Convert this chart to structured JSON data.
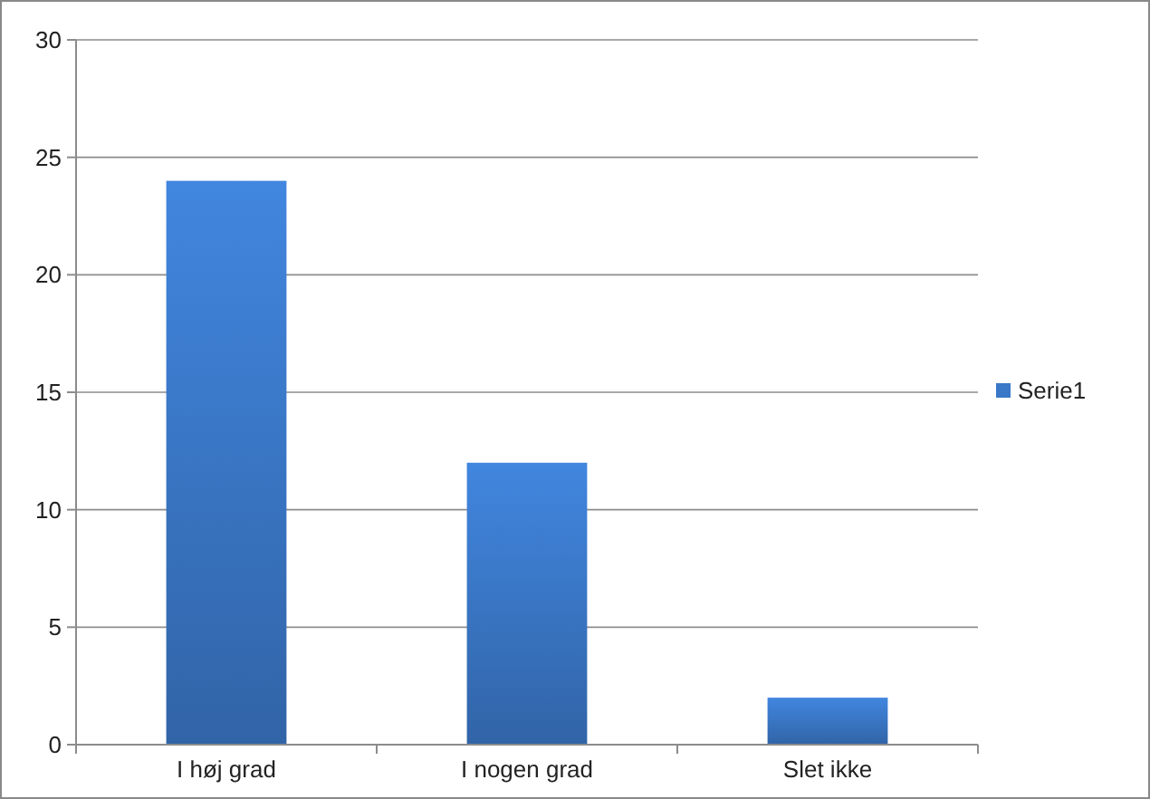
{
  "chart_data": {
    "type": "bar",
    "categories": [
      "I høj grad",
      "I nogen grad",
      "Slet ikke"
    ],
    "series": [
      {
        "name": "Serie1",
        "color": "#3a78c8",
        "values": [
          24,
          12,
          2
        ]
      }
    ],
    "ylim": [
      0,
      30
    ],
    "yticks": [
      0,
      5,
      10,
      15,
      20,
      25,
      30
    ],
    "grid": "y",
    "legend": "right"
  }
}
